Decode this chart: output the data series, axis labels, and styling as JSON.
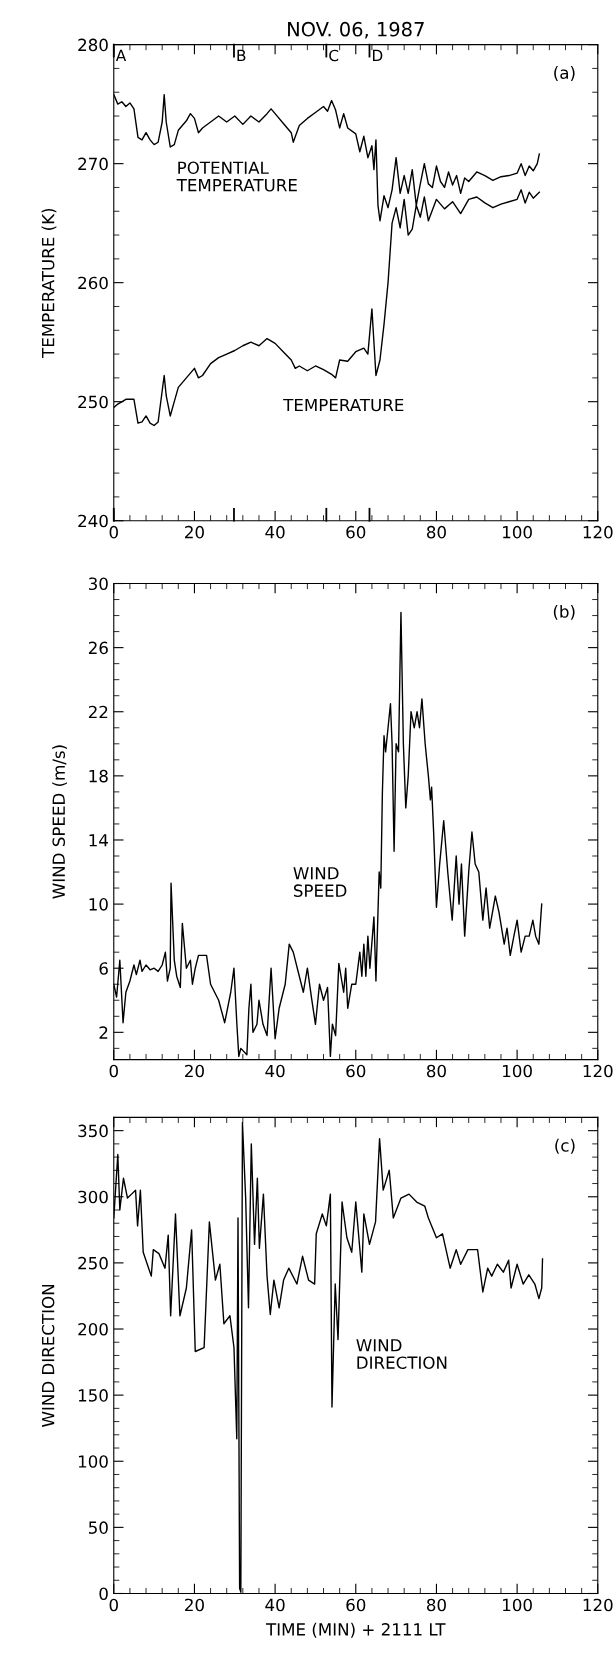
{
  "chart_data": [
    {
      "type": "line",
      "title": "NOV. 06, 1987",
      "ylabel": "TEMPERATURE (K)",
      "xlim": [
        0,
        120
      ],
      "xticks": [
        0,
        20,
        40,
        60,
        80,
        100,
        120
      ],
      "ylim": [
        240,
        280
      ],
      "yticks": [
        240,
        250,
        260,
        270,
        280
      ],
      "grid": false,
      "annotations": [
        "(a)"
      ],
      "ref_lines": [
        {
          "axis": "x",
          "value": 0,
          "label": "A"
        },
        {
          "axis": "x",
          "value": 29.8,
          "label": "B"
        },
        {
          "axis": "x",
          "value": 52.7,
          "label": "C"
        },
        {
          "axis": "x",
          "value": 63.4,
          "label": "D"
        }
      ],
      "series": [
        {
          "name": "POTENTIAL\nTEMPERATURE",
          "color": "#000000",
          "x": [
            0,
            1,
            2,
            3,
            4,
            5,
            6,
            7,
            8,
            9,
            10,
            11,
            12,
            12.5,
            13,
            14,
            15,
            16,
            18,
            19,
            20,
            21,
            22,
            24,
            26,
            28,
            30,
            32,
            34,
            36,
            38,
            39,
            40,
            42,
            44,
            44.5,
            46,
            48,
            50,
            52,
            53,
            54,
            55,
            56,
            57,
            58,
            60,
            61,
            62,
            63,
            64,
            64.5,
            65,
            65.5,
            66,
            67,
            68,
            69,
            70,
            71,
            72,
            73,
            74,
            75,
            76,
            77,
            78,
            79,
            80,
            81,
            82,
            83,
            84,
            85,
            86,
            87,
            88,
            90,
            92,
            94,
            96,
            98,
            100,
            101,
            102,
            103,
            104,
            105,
            105.5
          ],
          "values": [
            275.8,
            275,
            275.2,
            274.8,
            275.1,
            274.6,
            272.2,
            272,
            272.6,
            272,
            271.6,
            271.8,
            273.5,
            275.8,
            273.5,
            271.4,
            271.6,
            272.8,
            273.6,
            274.2,
            273.8,
            272.6,
            273,
            273.5,
            274,
            273.5,
            274,
            273.3,
            274,
            273.5,
            274.2,
            274.6,
            274.2,
            273.4,
            272.6,
            271.8,
            273.2,
            273.8,
            274.3,
            274.8,
            274.4,
            275.3,
            274.5,
            273,
            274.2,
            273,
            272.5,
            271,
            272.3,
            270.5,
            271.5,
            269.5,
            272,
            266.5,
            265.2,
            267.3,
            266.3,
            267.8,
            270.5,
            267.5,
            269,
            267.5,
            269.5,
            266.5,
            268.3,
            270,
            268.3,
            268,
            269.8,
            268.5,
            268,
            269.3,
            268.2,
            269,
            267.5,
            268.8,
            268.5,
            269.3,
            269,
            268.6,
            268.9,
            269,
            269.2,
            270,
            269,
            269.8,
            269.4,
            270,
            270.8
          ]
        },
        {
          "name": "TEMPERATURE",
          "color": "#000000",
          "x": [
            0,
            1,
            3,
            5,
            6,
            7,
            8,
            9,
            10,
            11,
            12.5,
            13,
            14,
            15,
            16,
            18,
            20,
            21,
            22,
            24,
            26,
            28,
            30,
            32,
            34,
            36,
            38,
            40,
            42,
            44,
            45,
            46,
            48,
            50,
            52,
            54,
            55,
            56,
            58,
            60,
            62,
            63,
            64,
            64.5,
            65,
            66,
            67,
            68,
            69,
            70,
            71,
            72,
            73,
            74,
            75,
            76,
            77,
            78,
            80,
            82,
            84,
            86,
            88,
            90,
            92,
            94,
            96,
            98,
            100,
            101,
            102,
            103,
            104,
            105.5
          ],
          "values": [
            249.5,
            249.8,
            250.2,
            250.2,
            248.2,
            248.3,
            248.8,
            248.2,
            248,
            248.3,
            252.2,
            250.5,
            248.8,
            250,
            251.2,
            252,
            252.8,
            252,
            252.2,
            253.2,
            253.7,
            254,
            254.3,
            254.7,
            255,
            254.7,
            255.3,
            254.9,
            254.2,
            253.5,
            252.8,
            253,
            252.6,
            253,
            252.7,
            252.3,
            252,
            253.5,
            253.4,
            254.2,
            254.5,
            254,
            257.8,
            255,
            252.2,
            253.5,
            256.5,
            260,
            265,
            266.3,
            264.6,
            267,
            264,
            264.5,
            266.5,
            265.5,
            267.2,
            265.2,
            267,
            266.2,
            266.8,
            265.8,
            267,
            267.2,
            266.7,
            266.3,
            266.6,
            266.8,
            267,
            267.8,
            266.7,
            267.6,
            267.1,
            267.6
          ]
        }
      ]
    },
    {
      "type": "line",
      "ylabel": "WIND SPEED (m/s)",
      "xlim": [
        0,
        120
      ],
      "xticks": [
        0,
        20,
        40,
        60,
        80,
        100,
        120
      ],
      "ylim": [
        0.3,
        30
      ],
      "yticks": [
        2,
        6,
        10,
        14,
        18,
        22,
        26,
        30
      ],
      "grid": false,
      "annotations": [
        "(b)"
      ],
      "series": [
        {
          "name": "WIND\nSPEED",
          "color": "#000000",
          "x": [
            0,
            0.7,
            1.5,
            2.3,
            3,
            4,
            5,
            5.6,
            6.5,
            7,
            8,
            9,
            10,
            11,
            12,
            12.8,
            13.3,
            14,
            14.2,
            15,
            15.6,
            16.5,
            17,
            18,
            19,
            19.5,
            20.2,
            21,
            23,
            24,
            25,
            26,
            27.5,
            29,
            29.8,
            30.5,
            31,
            31.5,
            33,
            33.5,
            34,
            34.5,
            35.5,
            36,
            37,
            38,
            39,
            40,
            41,
            42.5,
            43.5,
            44.5,
            46,
            47,
            48,
            49,
            50,
            51,
            52,
            53,
            53.7,
            54.2,
            55,
            55.8,
            57,
            57.5,
            58,
            59,
            60,
            61,
            61.5,
            62,
            62.5,
            63,
            63.5,
            64.5,
            65,
            65.8,
            66.2,
            66.6,
            67,
            67.4,
            67.8,
            68.6,
            69,
            69.5,
            70,
            70.6,
            71.2,
            71.8,
            72.4,
            73,
            73.7,
            74.5,
            75.2,
            75.8,
            76.4,
            77.2,
            78,
            78.5,
            78.8,
            79.3,
            80,
            80.8,
            81.8,
            82.8,
            83.9,
            84.9,
            85.6,
            86.2,
            87,
            88,
            88.8,
            89.6,
            90.5,
            91.5,
            92.3,
            93.2,
            94.6,
            95.5,
            96.8,
            97.5,
            98.3,
            99.2,
            100,
            101,
            102,
            103,
            103.9,
            104.6,
            105.4,
            106.1
          ],
          "values": [
            5,
            4.2,
            6.5,
            2.6,
            4.5,
            5.2,
            6.2,
            5.6,
            6.5,
            5.8,
            6.2,
            5.9,
            6,
            5.8,
            6.2,
            7,
            5.2,
            6,
            11.3,
            6.5,
            5.5,
            4.8,
            8.8,
            6,
            6.5,
            5,
            6,
            6.8,
            6.8,
            5,
            4.5,
            4,
            2.6,
            4.5,
            6,
            2.6,
            0.5,
            1,
            0.6,
            3.5,
            5,
            2,
            2.5,
            4,
            2.5,
            1.8,
            6,
            1.6,
            3.5,
            5,
            7.5,
            7,
            5.5,
            4.5,
            6,
            4.2,
            2.5,
            5,
            4,
            4.8,
            0.5,
            2.5,
            1.8,
            6.3,
            4.5,
            6,
            3.5,
            5,
            5,
            7,
            5.5,
            7.5,
            5.5,
            8,
            6,
            9.2,
            5.2,
            12,
            11,
            17,
            20.5,
            19.5,
            20.5,
            22.5,
            20,
            13.3,
            20,
            19.5,
            28.2,
            20,
            16,
            18,
            22,
            21,
            22,
            21,
            22.8,
            20,
            18,
            16.5,
            17.3,
            14.5,
            9.8,
            12.5,
            15.2,
            12,
            9,
            13,
            10,
            12.5,
            8,
            12,
            14.5,
            12.5,
            12,
            9,
            11,
            8.5,
            10.5,
            9.5,
            7.5,
            8.5,
            6.8,
            8,
            9,
            7,
            8,
            8,
            9,
            8,
            7.5,
            10
          ]
        }
      ]
    },
    {
      "type": "line",
      "ylabel": "WIND DIRECTION",
      "xlabel": "TIME (MIN) + 2111 LT",
      "xlim": [
        0,
        120
      ],
      "xticks": [
        0,
        20,
        40,
        60,
        80,
        100,
        120
      ],
      "ylim": [
        0,
        360
      ],
      "yticks": [
        0,
        50,
        100,
        150,
        200,
        250,
        300,
        350
      ],
      "grid": false,
      "annotations": [
        "(c)"
      ],
      "series": [
        {
          "name": "WIND\nDIRECTION",
          "color": "#000000",
          "x": [
            0,
            1,
            1.5,
            2.4,
            3.4,
            4.4,
            5.4,
            5.9,
            6.6,
            7.3,
            9.3,
            9.8,
            11.2,
            12.7,
            13.5,
            14.1,
            15.3,
            16.4,
            18,
            19.3,
            20.2,
            22.4,
            23.7,
            25.2,
            26.3,
            27.3,
            28.8,
            29.8,
            30.5,
            30.8,
            31.2,
            31.5,
            31.9,
            32.7,
            33.4,
            34.1,
            34.9,
            35.6,
            36.1,
            37.1,
            38,
            38.8,
            39.7,
            41,
            42.1,
            43.4,
            45.4,
            46.8,
            48.3,
            49.8,
            50.2,
            51.7,
            52.7,
            53.7,
            54.1,
            54.9,
            55.6,
            56.6,
            57.8,
            59,
            60,
            61.5,
            62,
            63.4,
            64.9,
            65.9,
            66.8,
            68.3,
            69.3,
            71.2,
            73.2,
            75.1,
            77.1,
            78,
            80,
            81.5,
            83.4,
            84.9,
            86,
            87.8,
            90.2,
            91.5,
            92.7,
            93.7,
            95.1,
            96.6,
            97.9,
            98.5,
            100,
            101.5,
            102.9,
            104.4,
            105.4,
            106.1,
            106.3
          ],
          "values": [
            284,
            332,
            290,
            314,
            299,
            302,
            305,
            278,
            305,
            258,
            240,
            260,
            257,
            246,
            271,
            210,
            287,
            210,
            231,
            275,
            183,
            186,
            281,
            237,
            249,
            204,
            210,
            186,
            117,
            284,
            4,
            1,
            356,
            299,
            216,
            340,
            264,
            314,
            261,
            302,
            240,
            211,
            237,
            216,
            237,
            246,
            234,
            255,
            237,
            234,
            272,
            287,
            278,
            302,
            141,
            234,
            192,
            296,
            269,
            258,
            296,
            243,
            287,
            264,
            281,
            344,
            305,
            320,
            284,
            299,
            302,
            296,
            293,
            284,
            269,
            272,
            246,
            260,
            249,
            260,
            260,
            228,
            246,
            240,
            249,
            243,
            252,
            231,
            249,
            234,
            241,
            234,
            223,
            231,
            253
          ]
        }
      ]
    }
  ]
}
